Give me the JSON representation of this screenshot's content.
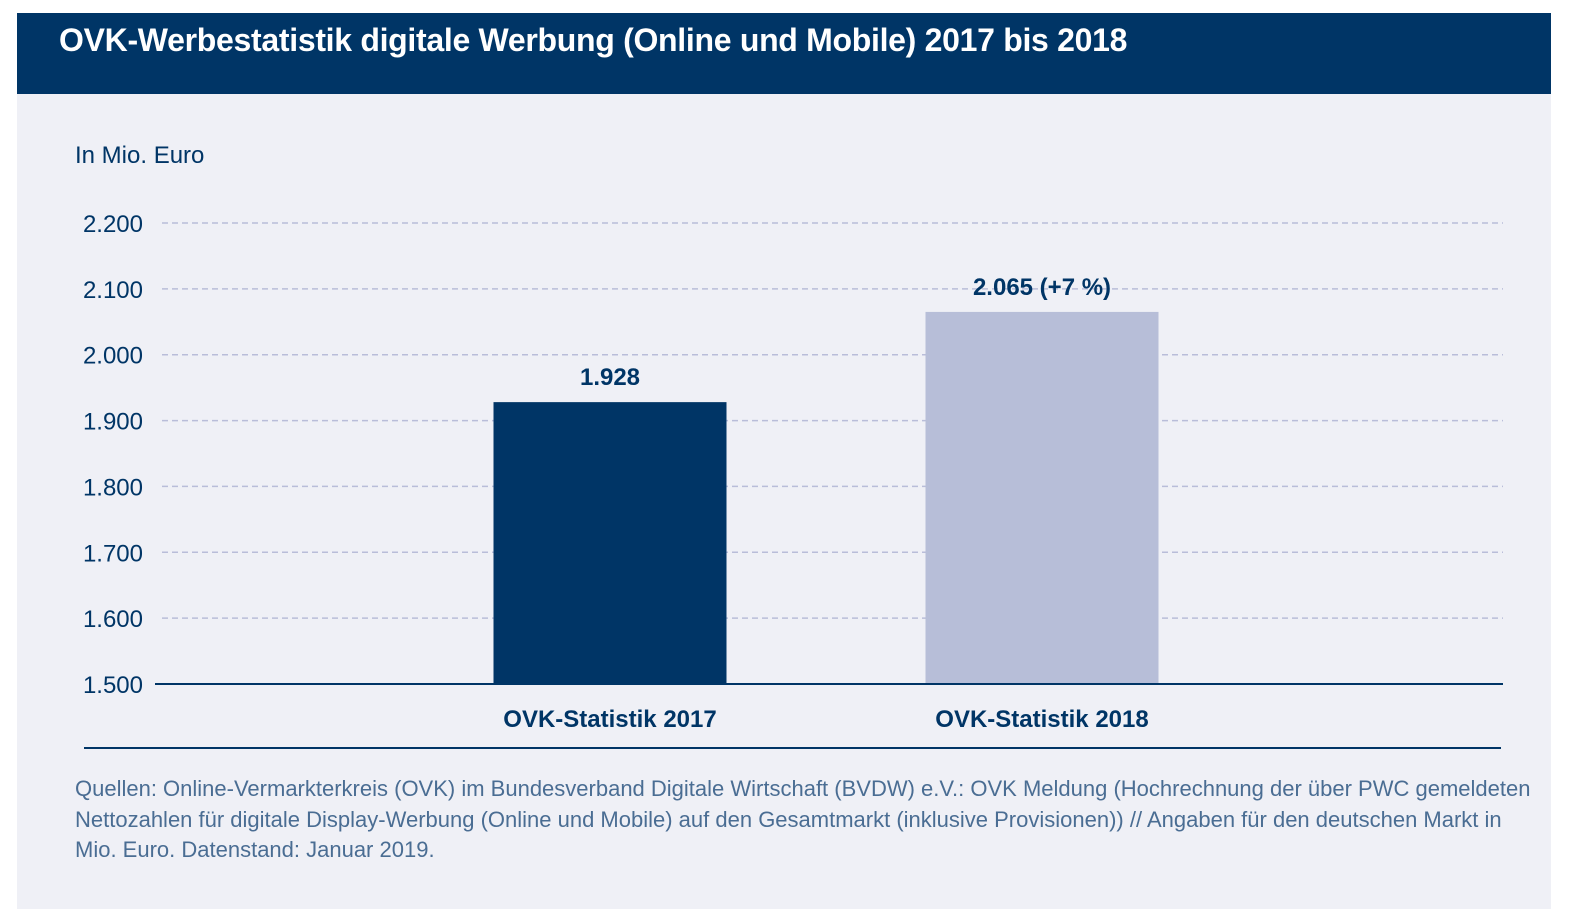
{
  "title": "OVK-Werbestatistik digitale Werbung (Online und Mobile) 2017 bis 2018",
  "chart_data": {
    "type": "bar",
    "title": "OVK-Werbestatistik digitale Werbung (Online und Mobile) 2017 bis 2018",
    "ylabel": "In Mio. Euro",
    "xlabel": "",
    "ylim": [
      1500,
      2200
    ],
    "yticks": [
      1500,
      1600,
      1700,
      1800,
      1900,
      2000,
      2100,
      2200
    ],
    "ytick_labels": [
      "1.500",
      "1.600",
      "1.700",
      "1.800",
      "1.900",
      "2.000",
      "2.100",
      "2.200"
    ],
    "grid": true,
    "categories": [
      "OVK-Statistik 2017",
      "OVK-Statistik 2018"
    ],
    "values": [
      1928,
      2065
    ],
    "data_labels": [
      "1.928",
      "2.065 (+7 %)"
    ],
    "colors": [
      "#003566",
      "#b7bed8"
    ]
  },
  "source": "Quellen: Online-Vermarkterkreis (OVK) im Bundesverband Digitale Wirtschaft (BVDW) e.V.: OVK Meldung (Hochrechnung der über PWC gemeldeten Nettozahlen für digitale Display-Werbung (Online und Mobile) auf den Gesamtmarkt (inklusive Provisionen)) // Angaben für den deutschen Markt in Mio. Euro. Datenstand: Januar 2019."
}
